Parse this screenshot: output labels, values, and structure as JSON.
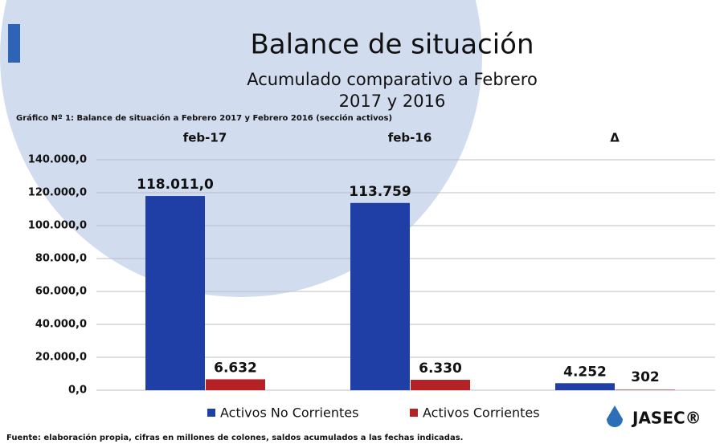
{
  "title": "Balance de situación",
  "subtitle": [
    "Acumulado comparativo a Febrero",
    "2017 y 2016"
  ],
  "source": "Fuente: elaboración propia, cifras en millones de colones, saldos acumulados a las fechas indicadas.",
  "logo": "JASEC®",
  "chart_data": {
    "type": "bar",
    "title": "Gráfico Nº 1: Balance de situación a Febrero 2017 y Febrero 2016 (sección activos)",
    "categories": [
      "feb-17",
      "feb-16",
      "Δ"
    ],
    "series": [
      {
        "name": "Activos No Corrientes",
        "color": "#1f3ea6",
        "values": [
          118011.0,
          113759,
          4252
        ],
        "value_labels": [
          "118.011,0",
          "113.759",
          "4.252"
        ]
      },
      {
        "name": "Activos Corrientes",
        "color": "#b52226",
        "values": [
          6632,
          6330,
          302
        ],
        "value_labels": [
          "6.632",
          "6.330",
          "302"
        ]
      }
    ],
    "ylim": [
      0,
      140000
    ],
    "yticks": [
      {
        "value": 0,
        "label": "0,0"
      },
      {
        "value": 20000,
        "label": "20.000,0"
      },
      {
        "value": 40000,
        "label": "40.000,0"
      },
      {
        "value": 60000,
        "label": "60.000,0"
      },
      {
        "value": 80000,
        "label": "80.000,0"
      },
      {
        "value": 100000,
        "label": "100.000,0"
      },
      {
        "value": 120000,
        "label": "120.000,0"
      },
      {
        "value": 140000,
        "label": "140.000,0"
      }
    ],
    "grid": true,
    "legend": "bottom"
  }
}
